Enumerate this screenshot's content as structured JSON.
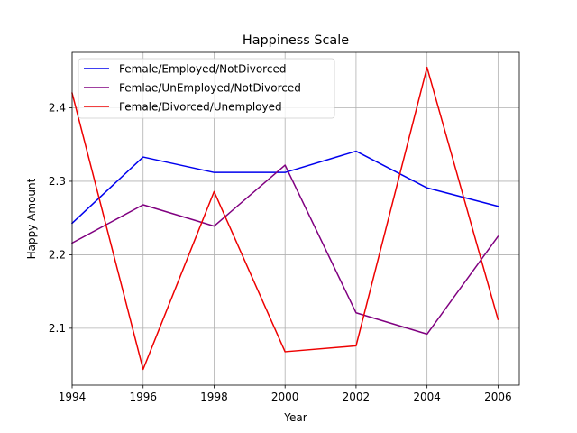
{
  "chart_data": {
    "type": "line",
    "title": "Happiness Scale",
    "xlabel": "Year",
    "ylabel": "Happy Amount",
    "xlim": [
      1994,
      2006.6
    ],
    "ylim": [
      2.0225,
      2.4755
    ],
    "x_ticks": [
      "1994",
      "1996",
      "1998",
      "2000",
      "2002",
      "2004",
      "2006"
    ],
    "x_tick_values": [
      1994,
      1996,
      1998,
      2000,
      2002,
      2004,
      2006
    ],
    "y_ticks": [
      "2.1",
      "2.2",
      "2.3",
      "2.4"
    ],
    "y_tick_values": [
      2.1,
      2.2,
      2.3,
      2.4
    ],
    "grid": true,
    "legend_position": "upper-left",
    "x": [
      1994,
      1996,
      1998,
      2000,
      2002,
      2004,
      2006
    ],
    "series": [
      {
        "name": "Female/Employed/NotDivorced",
        "color": "#0000ee",
        "values": [
          2.243,
          2.333,
          2.312,
          2.312,
          2.341,
          2.291,
          2.266
        ]
      },
      {
        "name": "Femlae/UnEmployed/NotDivorced",
        "color": "#800080",
        "values": [
          2.216,
          2.268,
          2.239,
          2.322,
          2.121,
          2.092,
          2.225
        ]
      },
      {
        "name": "Female/Divorced/Unemployed",
        "color": "#ee0000",
        "values": [
          2.42,
          2.044,
          2.286,
          2.068,
          2.076,
          2.455,
          2.112
        ]
      }
    ]
  }
}
